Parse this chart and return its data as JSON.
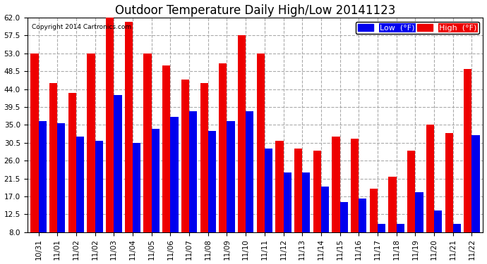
{
  "title": "Outdoor Temperature Daily High/Low 20141123",
  "copyright": "Copyright 2014 Cartronics.com",
  "background_color": "#ffffff",
  "plot_bg_color": "#ffffff",
  "grid_color": "#aaaaaa",
  "bar_color_low": "#0000ee",
  "bar_color_high": "#ee0000",
  "x_labels": [
    "10/31",
    "11/01",
    "11/02",
    "11/02",
    "11/03",
    "11/04",
    "11/05",
    "11/06",
    "11/07",
    "11/08",
    "11/09",
    "11/10",
    "11/11",
    "11/12",
    "11/13",
    "11/14",
    "11/15",
    "11/16",
    "11/17",
    "11/18",
    "11/19",
    "11/20",
    "11/21",
    "11/22"
  ],
  "highs": [
    53.0,
    45.5,
    43.0,
    53.0,
    64.0,
    61.0,
    53.0,
    50.0,
    46.5,
    45.5,
    50.5,
    57.5,
    53.0,
    31.0,
    29.0,
    28.5,
    32.0,
    31.5,
    19.0,
    22.0,
    28.5,
    35.0,
    33.0,
    49.0
  ],
  "lows": [
    36.0,
    35.5,
    32.0,
    31.0,
    42.5,
    30.5,
    34.0,
    37.0,
    38.5,
    33.5,
    36.0,
    38.5,
    29.0,
    23.0,
    23.0,
    19.5,
    15.5,
    16.5,
    10.0,
    10.0,
    18.0,
    13.5,
    10.0,
    32.5
  ],
  "ymin": 8.0,
  "ymax": 62.0,
  "yticks": [
    8.0,
    12.5,
    17.0,
    21.5,
    26.0,
    30.5,
    35.0,
    39.5,
    44.0,
    48.5,
    53.0,
    57.5,
    62.0
  ],
  "legend_low_label": "Low  (°F)",
  "legend_high_label": "High  (°F)",
  "title_fontsize": 12,
  "tick_fontsize": 7.5,
  "bar_width": 0.42
}
